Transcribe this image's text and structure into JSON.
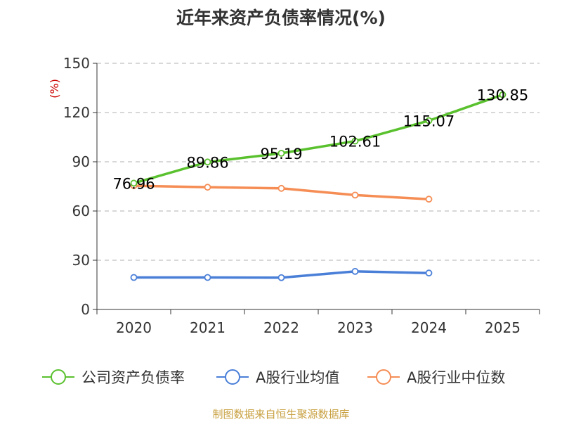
{
  "chart_data": {
    "type": "line",
    "title": "近年来资产负债率情况(%)",
    "ylabel": "(%)",
    "xlabel": "",
    "categories": [
      "2020",
      "2021",
      "2022",
      "2023",
      "2024",
      "2025"
    ],
    "y_ticks": [
      "0",
      "30",
      "60",
      "90",
      "120",
      "150"
    ],
    "ylim": [
      0,
      150
    ],
    "grid": true,
    "legend_position": "bottom",
    "series": [
      {
        "name": "公司资产负债率",
        "color": "#5ac12e",
        "values": [
          76.96,
          89.86,
          95.19,
          102.61,
          115.07,
          130.85
        ],
        "labels": [
          "76.96",
          "89.86",
          "95.19",
          "102.61",
          "115.07",
          "130.85"
        ]
      },
      {
        "name": "A股行业均值",
        "color": "#4a7fd8",
        "values": [
          19.5,
          19.5,
          19.4,
          23.2,
          22.2,
          null
        ]
      },
      {
        "name": "A股行业中位数",
        "color": "#f58d55",
        "values": [
          75.4,
          74.5,
          73.8,
          69.7,
          67.2,
          null
        ]
      }
    ]
  },
  "footer": {
    "source": "制图数据来自恒生聚源数据库"
  }
}
